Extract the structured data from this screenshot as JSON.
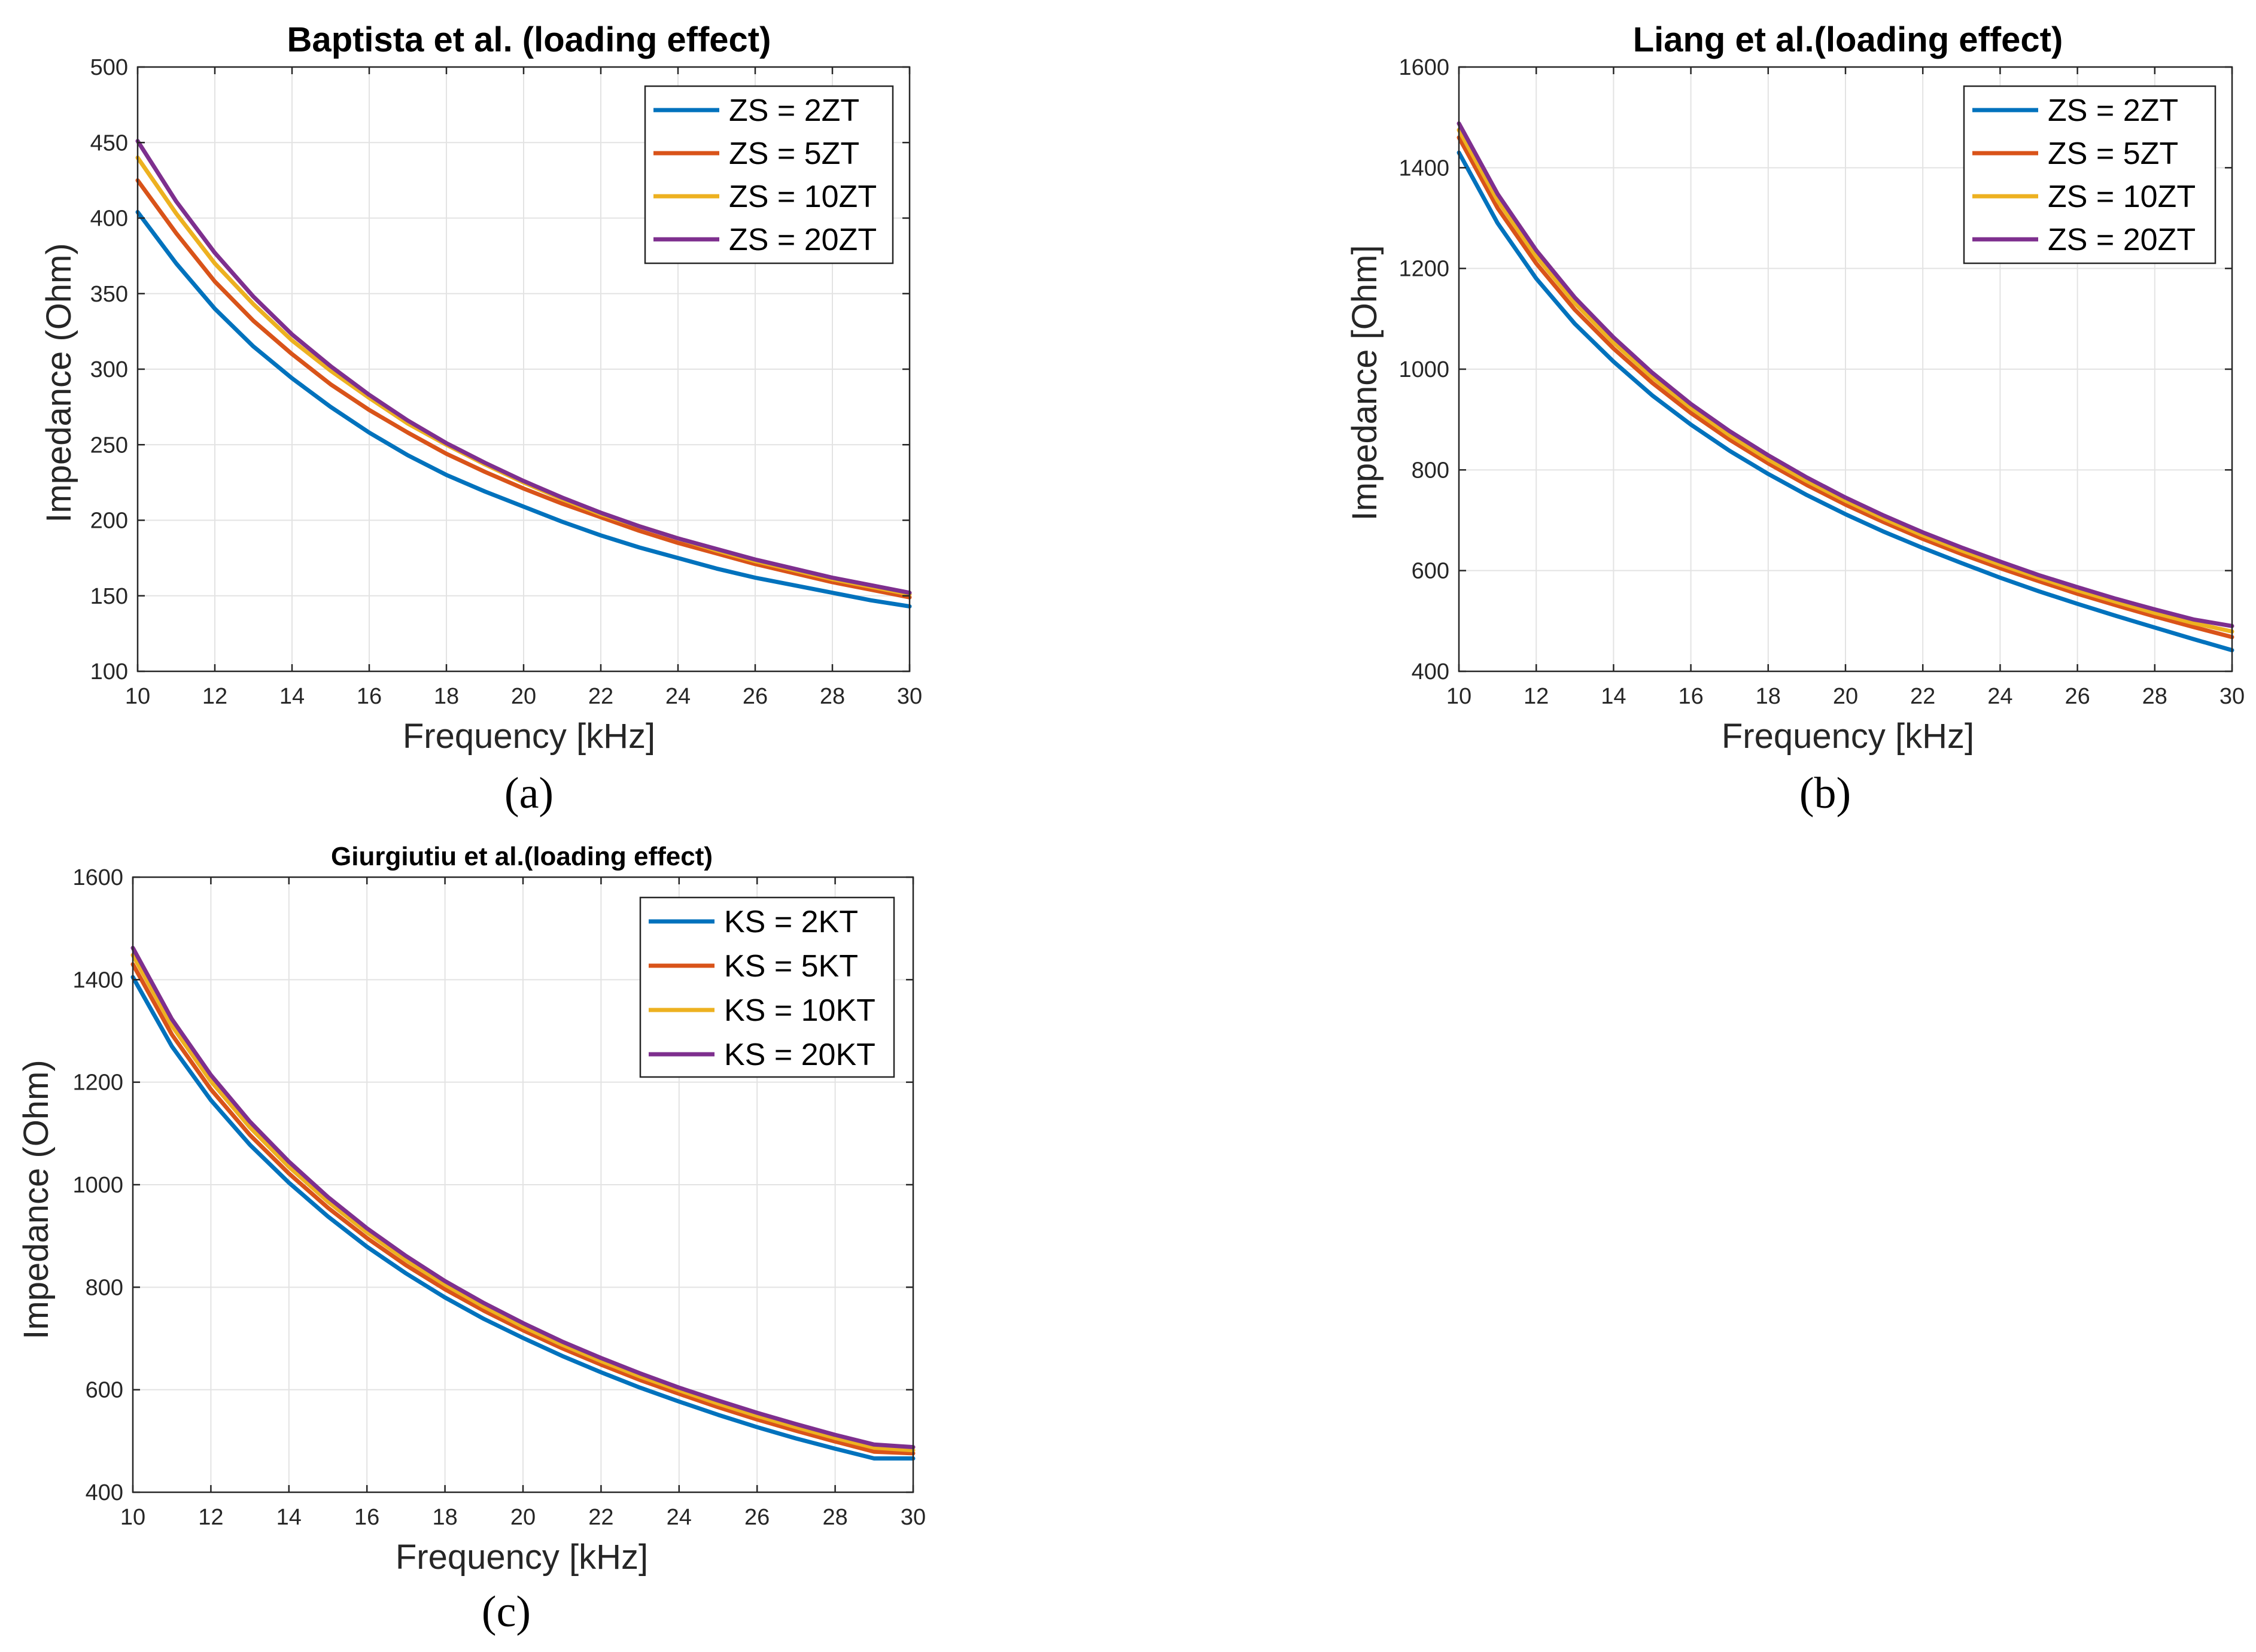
{
  "colors": {
    "series": [
      "#0072BD",
      "#D95319",
      "#EDB120",
      "#7E2F8E"
    ],
    "grid": "#e3e3e3",
    "axis": "#262626",
    "background": "#ffffff"
  },
  "chart_data": [
    {
      "type": "line",
      "panel_label": "(a)",
      "title": "Baptista et al. (loading effect)",
      "xlabel": "Frequency [kHz]",
      "ylabel": "Impedance (Ohm)",
      "xlim": [
        10,
        30
      ],
      "ylim": [
        100,
        500
      ],
      "xticks": [
        10,
        12,
        14,
        16,
        18,
        20,
        22,
        24,
        26,
        28,
        30
      ],
      "yticks": [
        100,
        150,
        200,
        250,
        300,
        350,
        400,
        450,
        500
      ],
      "grid": true,
      "legend_position": "top-right",
      "x": [
        10,
        11,
        12,
        13,
        14,
        15,
        16,
        17,
        18,
        19,
        20,
        21,
        22,
        23,
        24,
        25,
        26,
        27,
        28,
        29,
        30
      ],
      "series": [
        {
          "name": "ZS = 2ZT",
          "values": [
            404,
            370,
            340,
            315,
            294,
            275,
            258,
            243,
            230,
            219,
            209,
            199,
            190,
            182,
            175,
            168,
            162,
            157,
            152,
            147,
            143
          ]
        },
        {
          "name": "ZS = 5ZT",
          "values": [
            425,
            390,
            358,
            332,
            310,
            290,
            273,
            258,
            244,
            232,
            221,
            211,
            202,
            193,
            185,
            178,
            171,
            165,
            159,
            154,
            149
          ]
        },
        {
          "name": "ZS = 10ZT",
          "values": [
            440,
            403,
            370,
            343,
            319,
            299,
            281,
            264,
            250,
            237,
            225,
            214,
            204,
            196,
            188,
            180,
            173,
            167,
            161,
            156,
            151
          ]
        },
        {
          "name": "ZS = 20ZT",
          "values": [
            451,
            411,
            377,
            348,
            323,
            302,
            283,
            266,
            251,
            238,
            226,
            215,
            205,
            196,
            188,
            181,
            174,
            168,
            162,
            157,
            152
          ]
        }
      ]
    },
    {
      "type": "line",
      "panel_label": "(b)",
      "title": "Liang et al.(loading effect)",
      "xlabel": "Frequency [kHz]",
      "ylabel": "Impedance [Ohm]",
      "xlim": [
        10,
        30
      ],
      "ylim": [
        400,
        1600
      ],
      "xticks": [
        10,
        12,
        14,
        16,
        18,
        20,
        22,
        24,
        26,
        28,
        30
      ],
      "yticks": [
        400,
        600,
        800,
        1000,
        1200,
        1400,
        1600
      ],
      "grid": true,
      "legend_position": "top-right",
      "x": [
        10,
        11,
        12,
        13,
        14,
        15,
        16,
        17,
        18,
        19,
        20,
        21,
        22,
        23,
        24,
        25,
        26,
        27,
        28,
        29,
        30
      ],
      "series": [
        {
          "name": "ZS = 2ZT",
          "values": [
            1430,
            1290,
            1180,
            1090,
            1015,
            948,
            890,
            838,
            792,
            750,
            712,
            677,
            645,
            615,
            586,
            559,
            534,
            510,
            487,
            464,
            442
          ]
        },
        {
          "name": "ZS = 5ZT",
          "values": [
            1460,
            1320,
            1210,
            1118,
            1041,
            973,
            913,
            860,
            813,
            770,
            731,
            696,
            663,
            633,
            605,
            579,
            554,
            531,
            509,
            488,
            468
          ]
        },
        {
          "name": "ZS = 10ZT",
          "values": [
            1475,
            1335,
            1224,
            1131,
            1053,
            984,
            923,
            869,
            821,
            778,
            739,
            703,
            670,
            640,
            612,
            586,
            561,
            538,
            516,
            496,
            479
          ]
        },
        {
          "name": "ZS = 20ZT",
          "values": [
            1488,
            1348,
            1236,
            1142,
            1063,
            993,
            931,
            877,
            829,
            785,
            745,
            709,
            676,
            646,
            618,
            591,
            567,
            544,
            523,
            503,
            490
          ]
        }
      ]
    },
    {
      "type": "line",
      "panel_label": "(c)",
      "title": "Giurgiutiu et al.(loading effect)",
      "xlabel": "Frequency [kHz]",
      "ylabel": "Impedance (Ohm)",
      "xlim": [
        10,
        30
      ],
      "ylim": [
        400,
        1600
      ],
      "xticks": [
        10,
        12,
        14,
        16,
        18,
        20,
        22,
        24,
        26,
        28,
        30
      ],
      "yticks": [
        400,
        600,
        800,
        1000,
        1200,
        1400,
        1600
      ],
      "grid": true,
      "legend_position": "top-right",
      "x": [
        10,
        11,
        12,
        13,
        14,
        15,
        16,
        17,
        18,
        19,
        20,
        21,
        22,
        23,
        24,
        25,
        26,
        27,
        28,
        29,
        30
      ],
      "series": [
        {
          "name": "KS = 2KT",
          "values": [
            1405,
            1270,
            1165,
            1078,
            1004,
            938,
            879,
            827,
            780,
            738,
            701,
            666,
            634,
            604,
            577,
            551,
            527,
            505,
            485,
            466,
            466
          ]
        },
        {
          "name": "KS = 5KT",
          "values": [
            1430,
            1293,
            1186,
            1097,
            1022,
            955,
            896,
            843,
            796,
            754,
            716,
            681,
            649,
            619,
            592,
            566,
            542,
            520,
            499,
            479,
            476
          ]
        },
        {
          "name": "KS = 10KT",
          "values": [
            1448,
            1310,
            1202,
            1112,
            1035,
            967,
            907,
            853,
            805,
            762,
            723,
            688,
            656,
            626,
            599,
            573,
            549,
            527,
            506,
            487,
            482
          ]
        },
        {
          "name": "KS = 20KT",
          "values": [
            1462,
            1323,
            1214,
            1123,
            1045,
            976,
            915,
            861,
            812,
            769,
            730,
            694,
            662,
            632,
            604,
            579,
            555,
            533,
            512,
            493,
            488
          ]
        }
      ]
    }
  ]
}
